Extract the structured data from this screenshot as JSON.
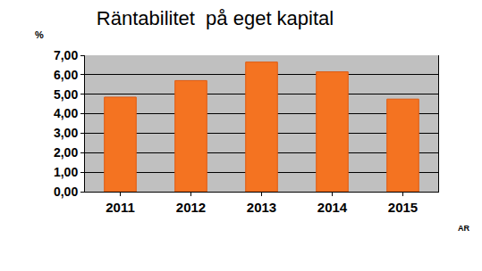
{
  "chart_data": {
    "type": "bar",
    "title": "Räntabilitet  på eget kapital",
    "ylabel": "%",
    "xlabel": "AR",
    "categories": [
      "2011",
      "2012",
      "2013",
      "2014",
      "2015"
    ],
    "values": [
      4.85,
      5.7,
      6.65,
      6.15,
      4.75
    ],
    "color": "#f47321",
    "ylim": [
      0,
      7
    ],
    "yticks": [
      {
        "value": 0,
        "label": "0,00"
      },
      {
        "value": 1,
        "label": "1,00"
      },
      {
        "value": 2,
        "label": "2,00"
      },
      {
        "value": 3,
        "label": "3,00"
      },
      {
        "value": 4,
        "label": "4,00"
      },
      {
        "value": 5,
        "label": "5,00"
      },
      {
        "value": 6,
        "label": "6,00"
      },
      {
        "value": 7,
        "label": "7,00"
      }
    ],
    "grid": true
  }
}
